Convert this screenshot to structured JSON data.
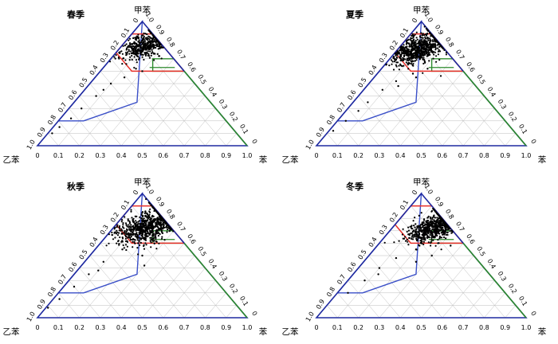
{
  "figure": {
    "vertex_labels": {
      "top": "甲苯",
      "left": "乙苯",
      "right": "苯"
    },
    "tick_labels": [
      "0",
      "0.1",
      "0.2",
      "0.3",
      "0.4",
      "0.5",
      "0.6",
      "0.7",
      "0.8",
      "0.9",
      "1.0"
    ]
  },
  "colors": {
    "triangle": "#1f2aa0",
    "red_zone": "#e8302a",
    "green_zone": "#2c8a2c",
    "blue_zone": "#3a4fc8",
    "points": "#000000",
    "grid": "#bdbdbd"
  },
  "chart_data": [
    {
      "type": "scatter",
      "title": "春季",
      "coordinate_system": "ternary",
      "axes": {
        "top": "甲苯",
        "left": "乙苯",
        "right": "苯"
      },
      "range": [
        0,
        1
      ],
      "grid": true,
      "cluster": {
        "toluene_center": 0.8,
        "benzene_center": 0.11,
        "spread": 0.06,
        "n_points": 420
      },
      "outliers": [
        [
          0.1,
          0.02
        ],
        [
          0.15,
          0.03
        ],
        [
          0.22,
          0.05
        ],
        [
          0.3,
          0.06
        ],
        [
          0.4,
          0.08
        ],
        [
          0.5,
          0.1
        ],
        [
          0.55,
          0.14
        ],
        [
          0.62,
          0.16
        ],
        [
          0.45,
          0.09
        ],
        [
          0.6,
          0.2
        ]
      ]
    },
    {
      "type": "scatter",
      "title": "夏季",
      "coordinate_system": "ternary",
      "axes": {
        "top": "甲苯",
        "left": "乙苯",
        "right": "苯"
      },
      "range": [
        0,
        1
      ],
      "grid": true,
      "cluster": {
        "toluene_center": 0.78,
        "benzene_center": 0.1,
        "spread": 0.07,
        "n_points": 700
      },
      "outliers": [
        [
          0.12,
          0.02
        ],
        [
          0.2,
          0.04
        ],
        [
          0.28,
          0.06
        ],
        [
          0.35,
          0.07
        ],
        [
          0.45,
          0.09
        ],
        [
          0.52,
          0.12
        ],
        [
          0.58,
          0.17
        ],
        [
          0.62,
          0.22
        ],
        [
          0.55,
          0.2
        ],
        [
          0.48,
          0.15
        ]
      ]
    },
    {
      "type": "scatter",
      "title": "秋季",
      "coordinate_system": "ternary",
      "axes": {
        "top": "甲苯",
        "left": "乙苯",
        "right": "苯"
      },
      "range": [
        0,
        1
      ],
      "grid": true,
      "cluster": {
        "toluene_center": 0.73,
        "benzene_center": 0.16,
        "spread": 0.08,
        "n_points": 750
      },
      "outliers": [
        [
          0.08,
          0.01
        ],
        [
          0.15,
          0.03
        ],
        [
          0.25,
          0.05
        ],
        [
          0.35,
          0.07
        ],
        [
          0.45,
          0.09
        ],
        [
          0.55,
          0.13
        ],
        [
          0.5,
          0.25
        ],
        [
          0.42,
          0.3
        ],
        [
          0.6,
          0.18
        ],
        [
          0.38,
          0.1
        ]
      ]
    },
    {
      "type": "scatter",
      "title": "冬季",
      "coordinate_system": "ternary",
      "axes": {
        "top": "甲苯",
        "left": "乙苯",
        "right": "苯"
      },
      "range": [
        0,
        1
      ],
      "grid": true,
      "cluster": {
        "toluene_center": 0.72,
        "benzene_center": 0.2,
        "spread": 0.07,
        "n_points": 650
      },
      "outliers": [
        [
          0.2,
          0.05
        ],
        [
          0.3,
          0.08
        ],
        [
          0.4,
          0.1
        ],
        [
          0.48,
          0.14
        ],
        [
          0.55,
          0.2
        ],
        [
          0.5,
          0.3
        ],
        [
          0.45,
          0.25
        ],
        [
          0.6,
          0.28
        ],
        [
          0.35,
          0.12
        ],
        [
          0.58,
          0.35
        ]
      ]
    }
  ]
}
